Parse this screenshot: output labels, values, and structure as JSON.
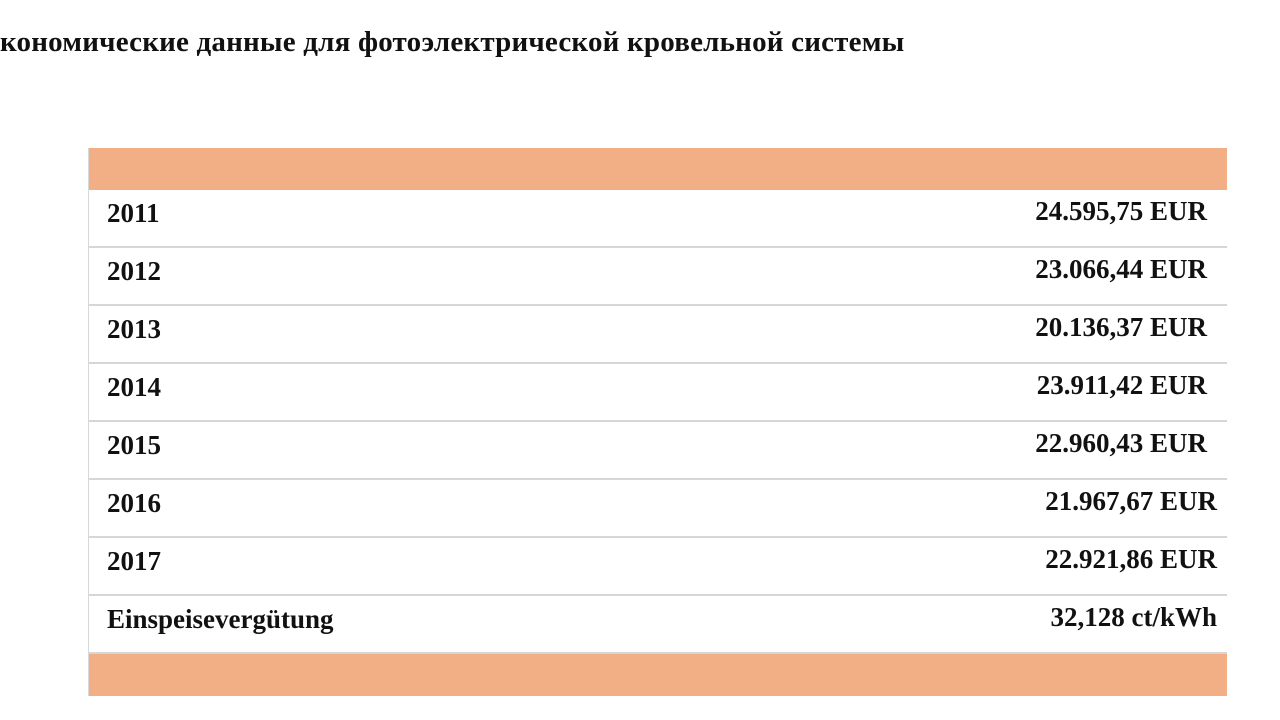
{
  "title": "кономические данные для фотоэлектрической кровельной системы",
  "header_color": "#f2ae84",
  "rows": [
    {
      "label": "2011",
      "value": "24.595,75 EUR"
    },
    {
      "label": "2012",
      "value": "23.066,44 EUR"
    },
    {
      "label": "2013",
      "value": "20.136,37 EUR"
    },
    {
      "label": "2014",
      "value": "23.911,42 EUR"
    },
    {
      "label": "2015",
      "value": "22.960,43 EUR"
    },
    {
      "label": "2016",
      "value": "21.967,67 EUR"
    },
    {
      "label": "2017",
      "value": "22.921,86 EUR"
    },
    {
      "label": "Einspeisevergütung",
      "value": "32,128 ct/kWh"
    }
  ]
}
